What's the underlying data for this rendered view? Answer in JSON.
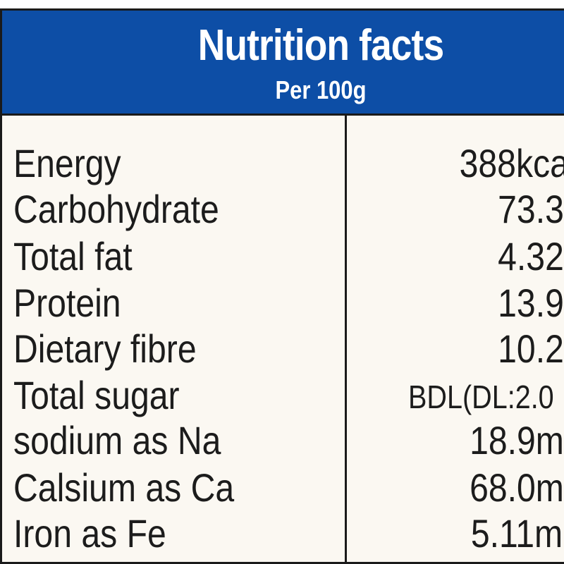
{
  "header": {
    "title": "Nutrition facts",
    "subtitle": "Per 100g"
  },
  "rows": [
    {
      "nutrient": "Energy",
      "value": "388kca"
    },
    {
      "nutrient": "Carbohydrate",
      "value": "73.3"
    },
    {
      "nutrient": "Total fat",
      "value": "4.32"
    },
    {
      "nutrient": "Protein",
      "value": "13.9"
    },
    {
      "nutrient": "Dietary fibre",
      "value": "10.2"
    },
    {
      "nutrient": "Total sugar",
      "value": "BDL(DL:2.0"
    },
    {
      "nutrient": "sodium as Na",
      "value": "18.9m"
    },
    {
      "nutrient": "Calsium as Ca",
      "value": "68.0m"
    },
    {
      "nutrient": "Iron as Fe",
      "value": "5.11m"
    }
  ],
  "colors": {
    "header_bg": "#0d4ea6",
    "body_bg": "#fbf8f2",
    "text": "#1c1c1c"
  }
}
